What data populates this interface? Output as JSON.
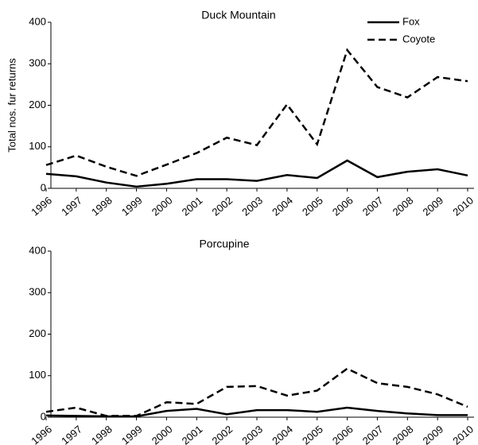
{
  "chart_data": [
    {
      "type": "line",
      "title": "Duck Mountain",
      "y_label": "Total nos. fur returns",
      "categories": [
        "1996",
        "1997",
        "1998",
        "1999",
        "2000",
        "2001",
        "2002",
        "2003",
        "2004",
        "2005",
        "2006",
        "2007",
        "2008",
        "2009",
        "2010"
      ],
      "series": [
        {
          "name": "Fox",
          "color": "#000000",
          "line_style": "solid",
          "values": [
            35,
            29,
            14,
            4,
            11,
            22,
            22,
            18,
            32,
            25,
            67,
            27,
            40,
            46,
            31
          ]
        },
        {
          "name": "Coyote",
          "color": "#000000",
          "line_style": "dashed",
          "values": [
            56,
            79,
            52,
            30,
            57,
            85,
            122,
            104,
            202,
            106,
            333,
            244,
            219,
            268,
            258
          ]
        }
      ],
      "ylim": [
        0,
        400
      ],
      "yticks": [
        0,
        100,
        200,
        300,
        400
      ],
      "legend": "top-right"
    },
    {
      "type": "line",
      "title": "Porcupine",
      "categories": [
        "1996",
        "1997",
        "1998",
        "1999",
        "2000",
        "2001",
        "2002",
        "2003",
        "2004",
        "2005",
        "2006",
        "2007",
        "2008",
        "2009",
        "2010"
      ],
      "series": [
        {
          "color": "#000000",
          "line_style": "solid",
          "values": [
            4,
            3,
            2,
            2,
            15,
            20,
            7,
            17,
            17,
            13,
            23,
            15,
            9,
            5,
            5
          ]
        },
        {
          "color": "#000000",
          "line_style": "dashed",
          "values": [
            13,
            23,
            3,
            3,
            36,
            32,
            73,
            75,
            52,
            64,
            117,
            82,
            73,
            55,
            25
          ]
        }
      ],
      "ylim": [
        0,
        400
      ],
      "yticks": [
        0,
        100,
        200,
        300,
        400
      ]
    }
  ]
}
